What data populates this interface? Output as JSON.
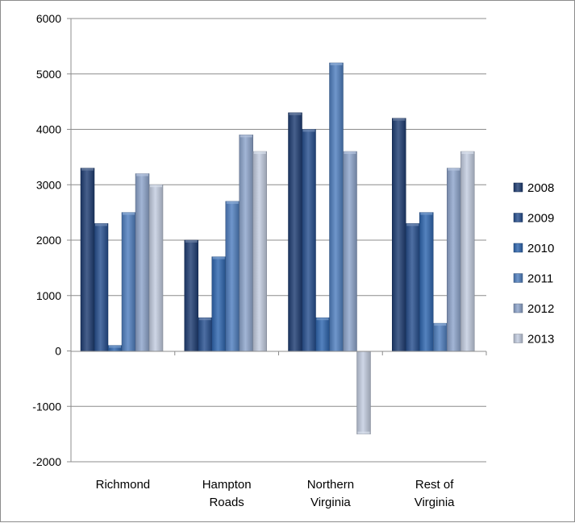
{
  "chart_data": {
    "type": "bar",
    "categories": [
      [
        "Richmond"
      ],
      [
        "Hampton",
        "Roads"
      ],
      [
        "Northern",
        "Virginia"
      ],
      [
        "Rest of",
        "Virginia"
      ]
    ],
    "series": [
      {
        "name": "2008",
        "values": [
          3300,
          2000,
          4300,
          4200
        ]
      },
      {
        "name": "2009",
        "values": [
          2300,
          600,
          4000,
          2300
        ]
      },
      {
        "name": "2010",
        "values": [
          100,
          1700,
          600,
          2500
        ]
      },
      {
        "name": "2011",
        "values": [
          2500,
          2700,
          5200,
          500
        ]
      },
      {
        "name": "2012",
        "values": [
          3200,
          3900,
          3600,
          3300
        ]
      },
      {
        "name": "2013",
        "values": [
          3000,
          3600,
          -1500,
          3600
        ]
      }
    ],
    "ylim": [
      -2000,
      6000
    ],
    "yticks": [
      -2000,
      -1000,
      0,
      1000,
      2000,
      3000,
      4000,
      5000,
      6000
    ],
    "grid": true,
    "legend_position": "right",
    "colors": [
      "#1f3d73",
      "#274f8f",
      "#2f66b0",
      "#4f7fbf",
      "#8ea5cc",
      "#c3cde0"
    ]
  }
}
